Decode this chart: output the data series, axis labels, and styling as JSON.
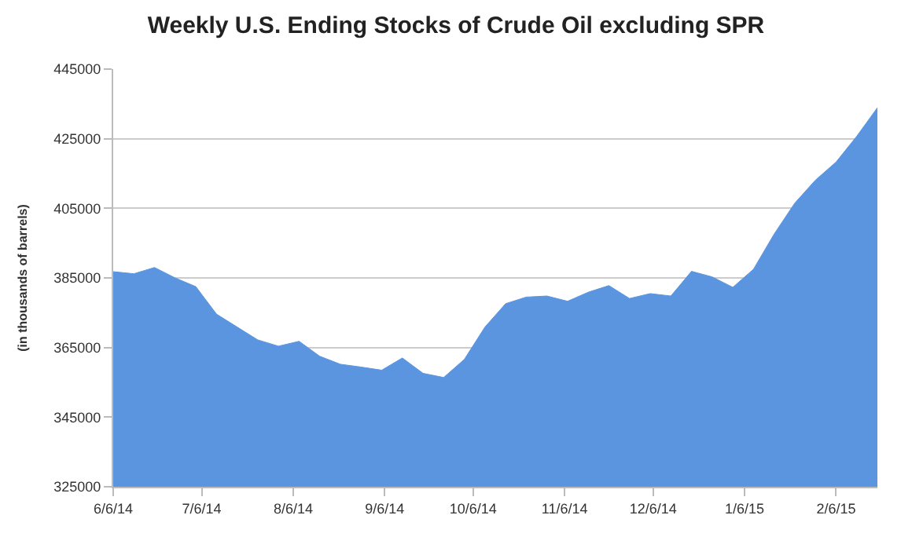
{
  "chart_data": {
    "type": "area",
    "title": "Weekly U.S. Ending Stocks of Crude Oil excluding SPR",
    "ylabel": "(in thousands of barrels)",
    "x": [
      "2014-06-06",
      "2014-06-13",
      "2014-06-20",
      "2014-06-27",
      "2014-07-04",
      "2014-07-11",
      "2014-07-18",
      "2014-07-25",
      "2014-08-01",
      "2014-08-08",
      "2014-08-15",
      "2014-08-22",
      "2014-08-29",
      "2014-09-05",
      "2014-09-12",
      "2014-09-19",
      "2014-09-26",
      "2014-10-03",
      "2014-10-10",
      "2014-10-17",
      "2014-10-24",
      "2014-10-31",
      "2014-11-07",
      "2014-11-14",
      "2014-11-21",
      "2014-11-28",
      "2014-12-05",
      "2014-12-12",
      "2014-12-19",
      "2014-12-26",
      "2015-01-02",
      "2015-01-09",
      "2015-01-16",
      "2015-01-23",
      "2015-01-30",
      "2015-02-06",
      "2015-02-13",
      "2015-02-20"
    ],
    "series": [
      {
        "color": "#5b95e0",
        "values": [
          386800,
          386200,
          388000,
          385000,
          382500,
          374600,
          370900,
          367200,
          365400,
          366800,
          362500,
          360200,
          359400,
          358500,
          362000,
          357600,
          356400,
          361600,
          370900,
          377600,
          379500,
          379800,
          378300,
          380900,
          382800,
          379100,
          380500,
          379800,
          386900,
          385300,
          382300,
          387500,
          397600,
          406500,
          413100,
          418300,
          425700,
          433900
        ]
      }
    ],
    "xlim": [
      "2014-06-06",
      "2015-02-20"
    ],
    "xticks": [
      {
        "value": "2014-06-06",
        "label": "6/6/14"
      },
      {
        "value": "2014-07-06",
        "label": "7/6/14"
      },
      {
        "value": "2014-08-06",
        "label": "8/6/14"
      },
      {
        "value": "2014-09-06",
        "label": "9/6/14"
      },
      {
        "value": "2014-10-06",
        "label": "10/6/14"
      },
      {
        "value": "2014-11-06",
        "label": "11/6/14"
      },
      {
        "value": "2014-12-06",
        "label": "12/6/14"
      },
      {
        "value": "2015-01-06",
        "label": "1/6/15"
      },
      {
        "value": "2015-02-06",
        "label": "2/6/15"
      }
    ],
    "ylim": [
      325000,
      445000
    ],
    "yticks": [
      325000,
      345000,
      365000,
      385000,
      405000,
      425000,
      445000
    ],
    "grid": "y",
    "legend": false
  }
}
